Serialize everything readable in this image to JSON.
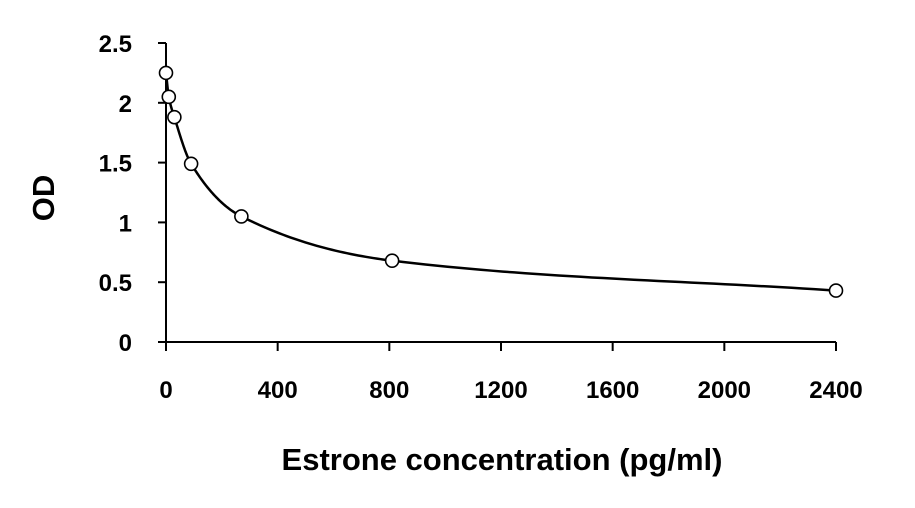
{
  "chart_data": {
    "type": "scatter",
    "title": "",
    "xlabel": "Estrone concentration (pg/ml)",
    "ylabel": "OD",
    "xlim": [
      0,
      2400
    ],
    "ylim": [
      0,
      2.5
    ],
    "x_ticks": [
      0,
      400,
      800,
      1200,
      1600,
      2000,
      2400
    ],
    "x_tick_labels": [
      "0",
      "400",
      "800",
      "1200",
      "1600",
      "2000",
      "2400"
    ],
    "y_ticks": [
      0,
      0.5,
      1,
      1.5,
      2,
      2.5
    ],
    "y_tick_labels": [
      "0",
      "0.5",
      "1",
      "1.5",
      "2",
      "2.5"
    ],
    "grid": false,
    "legend": "none",
    "series": [
      {
        "x": [
          0,
          10,
          30,
          90,
          270,
          810,
          2400
        ],
        "y": [
          2.25,
          2.05,
          1.88,
          1.49,
          1.05,
          0.68,
          0.43
        ],
        "marker": "open-circle",
        "line": "smooth-fit"
      }
    ],
    "colors": {
      "line": "#000000",
      "marker_fill": "#ffffff",
      "marker_stroke": "#000000",
      "axis": "#000000"
    }
  }
}
